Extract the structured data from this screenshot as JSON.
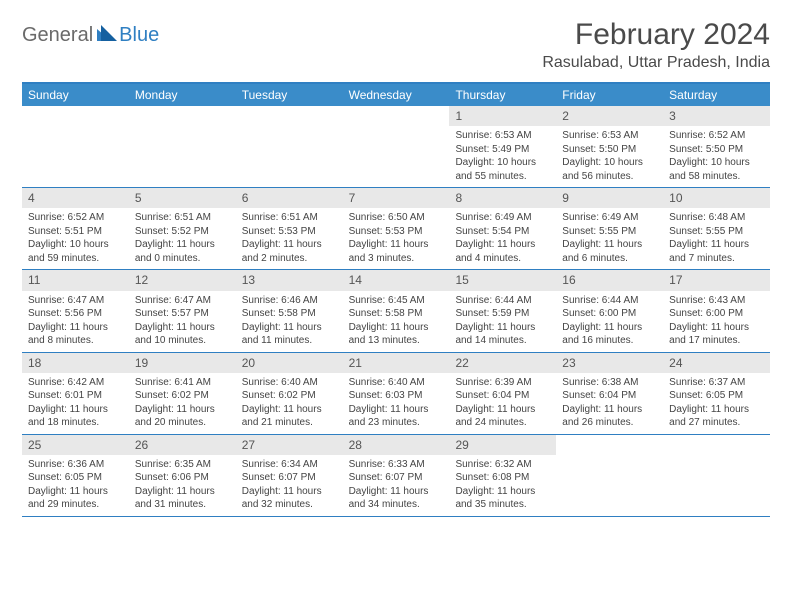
{
  "logo": {
    "text1": "General",
    "text2": "Blue"
  },
  "title": "February 2024",
  "location": "Rasulabad, Uttar Pradesh, India",
  "colors": {
    "header_bg": "#3a8cc9",
    "header_text": "#ffffff",
    "border": "#2f7fc2",
    "daynum_bg": "#e8e8e8",
    "text": "#444444",
    "title_text": "#4a4a4a",
    "logo_gray": "#6a6a6a",
    "logo_blue": "#2f7fc2"
  },
  "typography": {
    "title_fontsize": 30,
    "location_fontsize": 16,
    "header_fontsize": 12,
    "daynum_fontsize": 12,
    "body_fontsize": 10
  },
  "day_names": [
    "Sunday",
    "Monday",
    "Tuesday",
    "Wednesday",
    "Thursday",
    "Friday",
    "Saturday"
  ],
  "weeks": [
    [
      {
        "n": "",
        "lines": []
      },
      {
        "n": "",
        "lines": []
      },
      {
        "n": "",
        "lines": []
      },
      {
        "n": "",
        "lines": []
      },
      {
        "n": "1",
        "lines": [
          "Sunrise: 6:53 AM",
          "Sunset: 5:49 PM",
          "Daylight: 10 hours and 55 minutes."
        ]
      },
      {
        "n": "2",
        "lines": [
          "Sunrise: 6:53 AM",
          "Sunset: 5:50 PM",
          "Daylight: 10 hours and 56 minutes."
        ]
      },
      {
        "n": "3",
        "lines": [
          "Sunrise: 6:52 AM",
          "Sunset: 5:50 PM",
          "Daylight: 10 hours and 58 minutes."
        ]
      }
    ],
    [
      {
        "n": "4",
        "lines": [
          "Sunrise: 6:52 AM",
          "Sunset: 5:51 PM",
          "Daylight: 10 hours and 59 minutes."
        ]
      },
      {
        "n": "5",
        "lines": [
          "Sunrise: 6:51 AM",
          "Sunset: 5:52 PM",
          "Daylight: 11 hours and 0 minutes."
        ]
      },
      {
        "n": "6",
        "lines": [
          "Sunrise: 6:51 AM",
          "Sunset: 5:53 PM",
          "Daylight: 11 hours and 2 minutes."
        ]
      },
      {
        "n": "7",
        "lines": [
          "Sunrise: 6:50 AM",
          "Sunset: 5:53 PM",
          "Daylight: 11 hours and 3 minutes."
        ]
      },
      {
        "n": "8",
        "lines": [
          "Sunrise: 6:49 AM",
          "Sunset: 5:54 PM",
          "Daylight: 11 hours and 4 minutes."
        ]
      },
      {
        "n": "9",
        "lines": [
          "Sunrise: 6:49 AM",
          "Sunset: 5:55 PM",
          "Daylight: 11 hours and 6 minutes."
        ]
      },
      {
        "n": "10",
        "lines": [
          "Sunrise: 6:48 AM",
          "Sunset: 5:55 PM",
          "Daylight: 11 hours and 7 minutes."
        ]
      }
    ],
    [
      {
        "n": "11",
        "lines": [
          "Sunrise: 6:47 AM",
          "Sunset: 5:56 PM",
          "Daylight: 11 hours and 8 minutes."
        ]
      },
      {
        "n": "12",
        "lines": [
          "Sunrise: 6:47 AM",
          "Sunset: 5:57 PM",
          "Daylight: 11 hours and 10 minutes."
        ]
      },
      {
        "n": "13",
        "lines": [
          "Sunrise: 6:46 AM",
          "Sunset: 5:58 PM",
          "Daylight: 11 hours and 11 minutes."
        ]
      },
      {
        "n": "14",
        "lines": [
          "Sunrise: 6:45 AM",
          "Sunset: 5:58 PM",
          "Daylight: 11 hours and 13 minutes."
        ]
      },
      {
        "n": "15",
        "lines": [
          "Sunrise: 6:44 AM",
          "Sunset: 5:59 PM",
          "Daylight: 11 hours and 14 minutes."
        ]
      },
      {
        "n": "16",
        "lines": [
          "Sunrise: 6:44 AM",
          "Sunset: 6:00 PM",
          "Daylight: 11 hours and 16 minutes."
        ]
      },
      {
        "n": "17",
        "lines": [
          "Sunrise: 6:43 AM",
          "Sunset: 6:00 PM",
          "Daylight: 11 hours and 17 minutes."
        ]
      }
    ],
    [
      {
        "n": "18",
        "lines": [
          "Sunrise: 6:42 AM",
          "Sunset: 6:01 PM",
          "Daylight: 11 hours and 18 minutes."
        ]
      },
      {
        "n": "19",
        "lines": [
          "Sunrise: 6:41 AM",
          "Sunset: 6:02 PM",
          "Daylight: 11 hours and 20 minutes."
        ]
      },
      {
        "n": "20",
        "lines": [
          "Sunrise: 6:40 AM",
          "Sunset: 6:02 PM",
          "Daylight: 11 hours and 21 minutes."
        ]
      },
      {
        "n": "21",
        "lines": [
          "Sunrise: 6:40 AM",
          "Sunset: 6:03 PM",
          "Daylight: 11 hours and 23 minutes."
        ]
      },
      {
        "n": "22",
        "lines": [
          "Sunrise: 6:39 AM",
          "Sunset: 6:04 PM",
          "Daylight: 11 hours and 24 minutes."
        ]
      },
      {
        "n": "23",
        "lines": [
          "Sunrise: 6:38 AM",
          "Sunset: 6:04 PM",
          "Daylight: 11 hours and 26 minutes."
        ]
      },
      {
        "n": "24",
        "lines": [
          "Sunrise: 6:37 AM",
          "Sunset: 6:05 PM",
          "Daylight: 11 hours and 27 minutes."
        ]
      }
    ],
    [
      {
        "n": "25",
        "lines": [
          "Sunrise: 6:36 AM",
          "Sunset: 6:05 PM",
          "Daylight: 11 hours and 29 minutes."
        ]
      },
      {
        "n": "26",
        "lines": [
          "Sunrise: 6:35 AM",
          "Sunset: 6:06 PM",
          "Daylight: 11 hours and 31 minutes."
        ]
      },
      {
        "n": "27",
        "lines": [
          "Sunrise: 6:34 AM",
          "Sunset: 6:07 PM",
          "Daylight: 11 hours and 32 minutes."
        ]
      },
      {
        "n": "28",
        "lines": [
          "Sunrise: 6:33 AM",
          "Sunset: 6:07 PM",
          "Daylight: 11 hours and 34 minutes."
        ]
      },
      {
        "n": "29",
        "lines": [
          "Sunrise: 6:32 AM",
          "Sunset: 6:08 PM",
          "Daylight: 11 hours and 35 minutes."
        ]
      },
      {
        "n": "",
        "lines": []
      },
      {
        "n": "",
        "lines": []
      }
    ]
  ]
}
